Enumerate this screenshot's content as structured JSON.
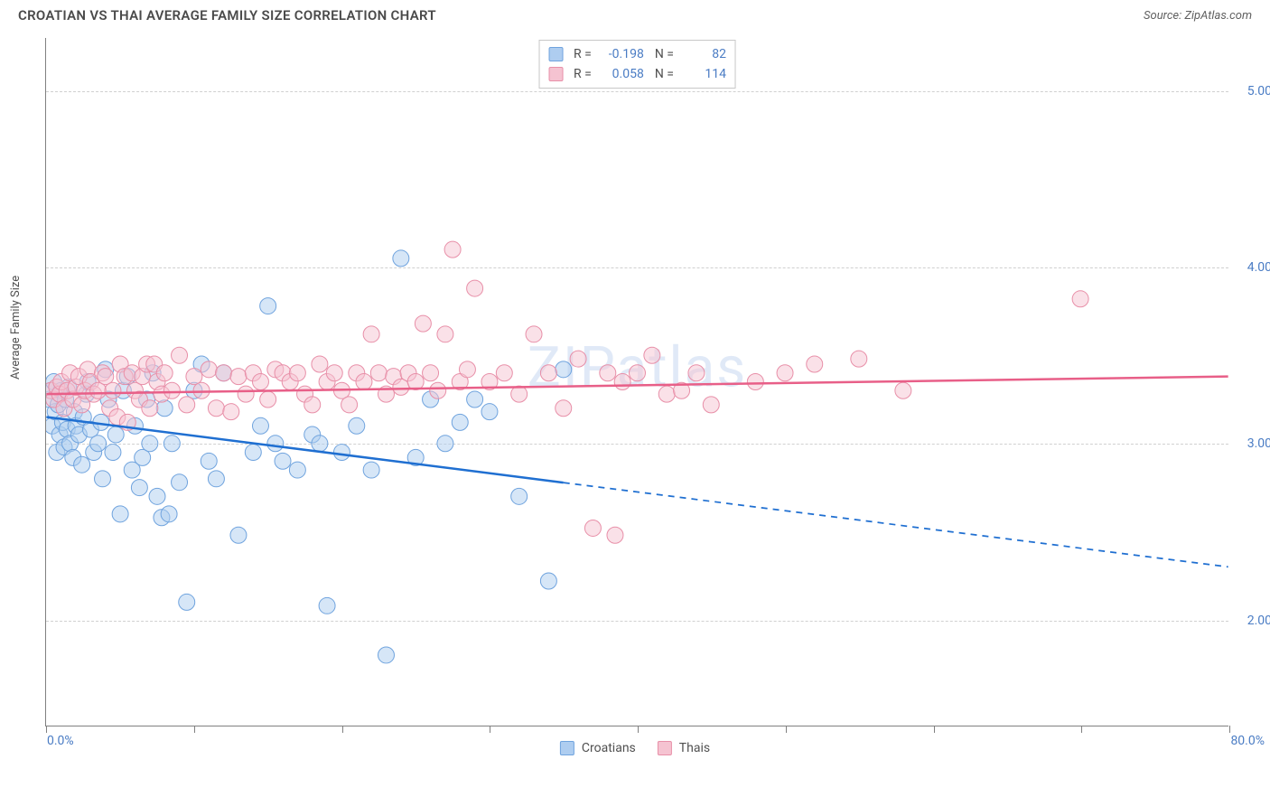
{
  "header": {
    "title": "CROATIAN VS THAI AVERAGE FAMILY SIZE CORRELATION CHART",
    "source_prefix": "Source: ",
    "source_name": "ZipAtlas.com"
  },
  "chart": {
    "type": "scatter",
    "ylabel": "Average Family Size",
    "watermark": "ZIPatlas",
    "background_color": "#ffffff",
    "grid_color": "#d0d0d0",
    "axis_color": "#808080",
    "text_color": "#505050",
    "value_color": "#4a7cc4",
    "marker_radius": 9,
    "marker_opacity": 0.5,
    "line_width": 2.5,
    "xaxis": {
      "min": 0,
      "max": 80,
      "ticks": [
        0,
        10,
        20,
        30,
        40,
        50,
        60,
        70,
        80
      ],
      "label_min": "0.0%",
      "label_max": "80.0%"
    },
    "yaxis": {
      "min": 1.4,
      "max": 5.3,
      "gridlines": [
        2.0,
        3.0,
        4.0,
        5.0
      ],
      "tick_labels": [
        "2.00",
        "3.00",
        "4.00",
        "5.00"
      ]
    },
    "series": [
      {
        "name": "Croatians",
        "color_fill": "#aecdf0",
        "color_stroke": "#6fa3de",
        "line_color": "#1f6fd1",
        "R": "-0.198",
        "N": "82",
        "trend": {
          "y_at_xmin": 3.15,
          "y_at_xmax": 2.3,
          "solid_until_x": 35
        },
        "points": [
          [
            0.2,
            3.25
          ],
          [
            0.3,
            3.3
          ],
          [
            0.4,
            3.1
          ],
          [
            0.5,
            3.35
          ],
          [
            0.6,
            3.18
          ],
          [
            0.7,
            2.95
          ],
          [
            0.8,
            3.22
          ],
          [
            0.9,
            3.05
          ],
          [
            1.0,
            3.3
          ],
          [
            1.1,
            3.12
          ],
          [
            1.2,
            2.98
          ],
          [
            1.3,
            3.25
          ],
          [
            1.4,
            3.08
          ],
          [
            1.5,
            3.32
          ],
          [
            1.6,
            3.0
          ],
          [
            1.8,
            2.92
          ],
          [
            1.9,
            3.18
          ],
          [
            2.0,
            3.1
          ],
          [
            2.2,
            3.05
          ],
          [
            2.4,
            2.88
          ],
          [
            2.5,
            3.15
          ],
          [
            2.7,
            3.28
          ],
          [
            2.8,
            3.35
          ],
          [
            3.0,
            3.08
          ],
          [
            3.2,
            2.95
          ],
          [
            3.5,
            3.0
          ],
          [
            3.7,
            3.12
          ],
          [
            3.8,
            2.8
          ],
          [
            4.0,
            3.42
          ],
          [
            4.2,
            3.25
          ],
          [
            4.5,
            2.95
          ],
          [
            4.7,
            3.05
          ],
          [
            5.0,
            2.6
          ],
          [
            5.2,
            3.3
          ],
          [
            5.5,
            3.38
          ],
          [
            5.8,
            2.85
          ],
          [
            6.0,
            3.1
          ],
          [
            6.3,
            2.75
          ],
          [
            6.5,
            2.92
          ],
          [
            6.8,
            3.25
          ],
          [
            7.0,
            3.0
          ],
          [
            7.2,
            3.4
          ],
          [
            7.5,
            2.7
          ],
          [
            7.8,
            2.58
          ],
          [
            8.0,
            3.2
          ],
          [
            8.3,
            2.6
          ],
          [
            8.5,
            3.0
          ],
          [
            9.0,
            2.78
          ],
          [
            9.5,
            2.1
          ],
          [
            10.0,
            3.3
          ],
          [
            10.5,
            3.45
          ],
          [
            11.0,
            2.9
          ],
          [
            11.5,
            2.8
          ],
          [
            12.0,
            3.4
          ],
          [
            13.0,
            2.48
          ],
          [
            14.0,
            2.95
          ],
          [
            14.5,
            3.1
          ],
          [
            15.0,
            3.78
          ],
          [
            15.5,
            3.0
          ],
          [
            16.0,
            2.9
          ],
          [
            17.0,
            2.85
          ],
          [
            18.0,
            3.05
          ],
          [
            18.5,
            3.0
          ],
          [
            19.0,
            2.08
          ],
          [
            20.0,
            2.95
          ],
          [
            21.0,
            3.1
          ],
          [
            22.0,
            2.85
          ],
          [
            23.0,
            1.8
          ],
          [
            24.0,
            4.05
          ],
          [
            25.0,
            2.92
          ],
          [
            26.0,
            3.25
          ],
          [
            27.0,
            3.0
          ],
          [
            28.0,
            3.12
          ],
          [
            29.0,
            3.25
          ],
          [
            30.0,
            3.18
          ],
          [
            32.0,
            2.7
          ],
          [
            34.0,
            2.22
          ],
          [
            35.0,
            3.42
          ]
        ]
      },
      {
        "name": "Thais",
        "color_fill": "#f5c3d1",
        "color_stroke": "#e88fa8",
        "line_color": "#e85f88",
        "R": "0.058",
        "N": "114",
        "trend": {
          "y_at_xmin": 3.28,
          "y_at_xmax": 3.38,
          "solid_until_x": 80
        },
        "points": [
          [
            0.3,
            3.3
          ],
          [
            0.5,
            3.25
          ],
          [
            0.7,
            3.32
          ],
          [
            0.9,
            3.28
          ],
          [
            1.0,
            3.35
          ],
          [
            1.2,
            3.2
          ],
          [
            1.4,
            3.3
          ],
          [
            1.6,
            3.4
          ],
          [
            1.8,
            3.25
          ],
          [
            2.0,
            3.32
          ],
          [
            2.2,
            3.38
          ],
          [
            2.4,
            3.22
          ],
          [
            2.6,
            3.3
          ],
          [
            2.8,
            3.42
          ],
          [
            3.0,
            3.35
          ],
          [
            3.2,
            3.28
          ],
          [
            3.5,
            3.3
          ],
          [
            3.8,
            3.4
          ],
          [
            4.0,
            3.38
          ],
          [
            4.3,
            3.2
          ],
          [
            4.5,
            3.3
          ],
          [
            4.8,
            3.15
          ],
          [
            5.0,
            3.45
          ],
          [
            5.3,
            3.38
          ],
          [
            5.5,
            3.12
          ],
          [
            5.8,
            3.4
          ],
          [
            6.0,
            3.3
          ],
          [
            6.3,
            3.25
          ],
          [
            6.5,
            3.38
          ],
          [
            6.8,
            3.45
          ],
          [
            7.0,
            3.2
          ],
          [
            7.3,
            3.45
          ],
          [
            7.5,
            3.35
          ],
          [
            7.8,
            3.28
          ],
          [
            8.0,
            3.4
          ],
          [
            8.5,
            3.3
          ],
          [
            9.0,
            3.5
          ],
          [
            9.5,
            3.22
          ],
          [
            10.0,
            3.38
          ],
          [
            10.5,
            3.3
          ],
          [
            11.0,
            3.42
          ],
          [
            11.5,
            3.2
          ],
          [
            12.0,
            3.4
          ],
          [
            12.5,
            3.18
          ],
          [
            13.0,
            3.38
          ],
          [
            13.5,
            3.28
          ],
          [
            14.0,
            3.4
          ],
          [
            14.5,
            3.35
          ],
          [
            15.0,
            3.25
          ],
          [
            15.5,
            3.42
          ],
          [
            16.0,
            3.4
          ],
          [
            16.5,
            3.35
          ],
          [
            17.0,
            3.4
          ],
          [
            17.5,
            3.28
          ],
          [
            18.0,
            3.22
          ],
          [
            18.5,
            3.45
          ],
          [
            19.0,
            3.35
          ],
          [
            19.5,
            3.4
          ],
          [
            20.0,
            3.3
          ],
          [
            20.5,
            3.22
          ],
          [
            21.0,
            3.4
          ],
          [
            21.5,
            3.35
          ],
          [
            22.0,
            3.62
          ],
          [
            22.5,
            3.4
          ],
          [
            23.0,
            3.28
          ],
          [
            23.5,
            3.38
          ],
          [
            24.0,
            3.32
          ],
          [
            24.5,
            3.4
          ],
          [
            25.0,
            3.35
          ],
          [
            25.5,
            3.68
          ],
          [
            26.0,
            3.4
          ],
          [
            26.5,
            3.3
          ],
          [
            27.0,
            3.62
          ],
          [
            27.5,
            4.1
          ],
          [
            28.0,
            3.35
          ],
          [
            28.5,
            3.42
          ],
          [
            29.0,
            3.88
          ],
          [
            30.0,
            3.35
          ],
          [
            31.0,
            3.4
          ],
          [
            32.0,
            3.28
          ],
          [
            33.0,
            3.62
          ],
          [
            34.0,
            3.4
          ],
          [
            35.0,
            3.2
          ],
          [
            36.0,
            3.48
          ],
          [
            37.0,
            2.52
          ],
          [
            38.0,
            3.4
          ],
          [
            38.5,
            2.48
          ],
          [
            39.0,
            3.35
          ],
          [
            40.0,
            3.4
          ],
          [
            41.0,
            3.5
          ],
          [
            42.0,
            3.28
          ],
          [
            43.0,
            3.3
          ],
          [
            44.0,
            3.4
          ],
          [
            45.0,
            3.22
          ],
          [
            48.0,
            3.35
          ],
          [
            50.0,
            3.4
          ],
          [
            52.0,
            3.45
          ],
          [
            55.0,
            3.48
          ],
          [
            58.0,
            3.3
          ],
          [
            70.0,
            3.82
          ]
        ]
      }
    ]
  },
  "bottom_legend": {
    "items": [
      {
        "label": "Croatians",
        "fill": "#aecdf0",
        "stroke": "#6fa3de"
      },
      {
        "label": "Thais",
        "fill": "#f5c3d1",
        "stroke": "#e88fa8"
      }
    ]
  },
  "top_legend": {
    "R_label": "R =",
    "N_label": "N ="
  }
}
